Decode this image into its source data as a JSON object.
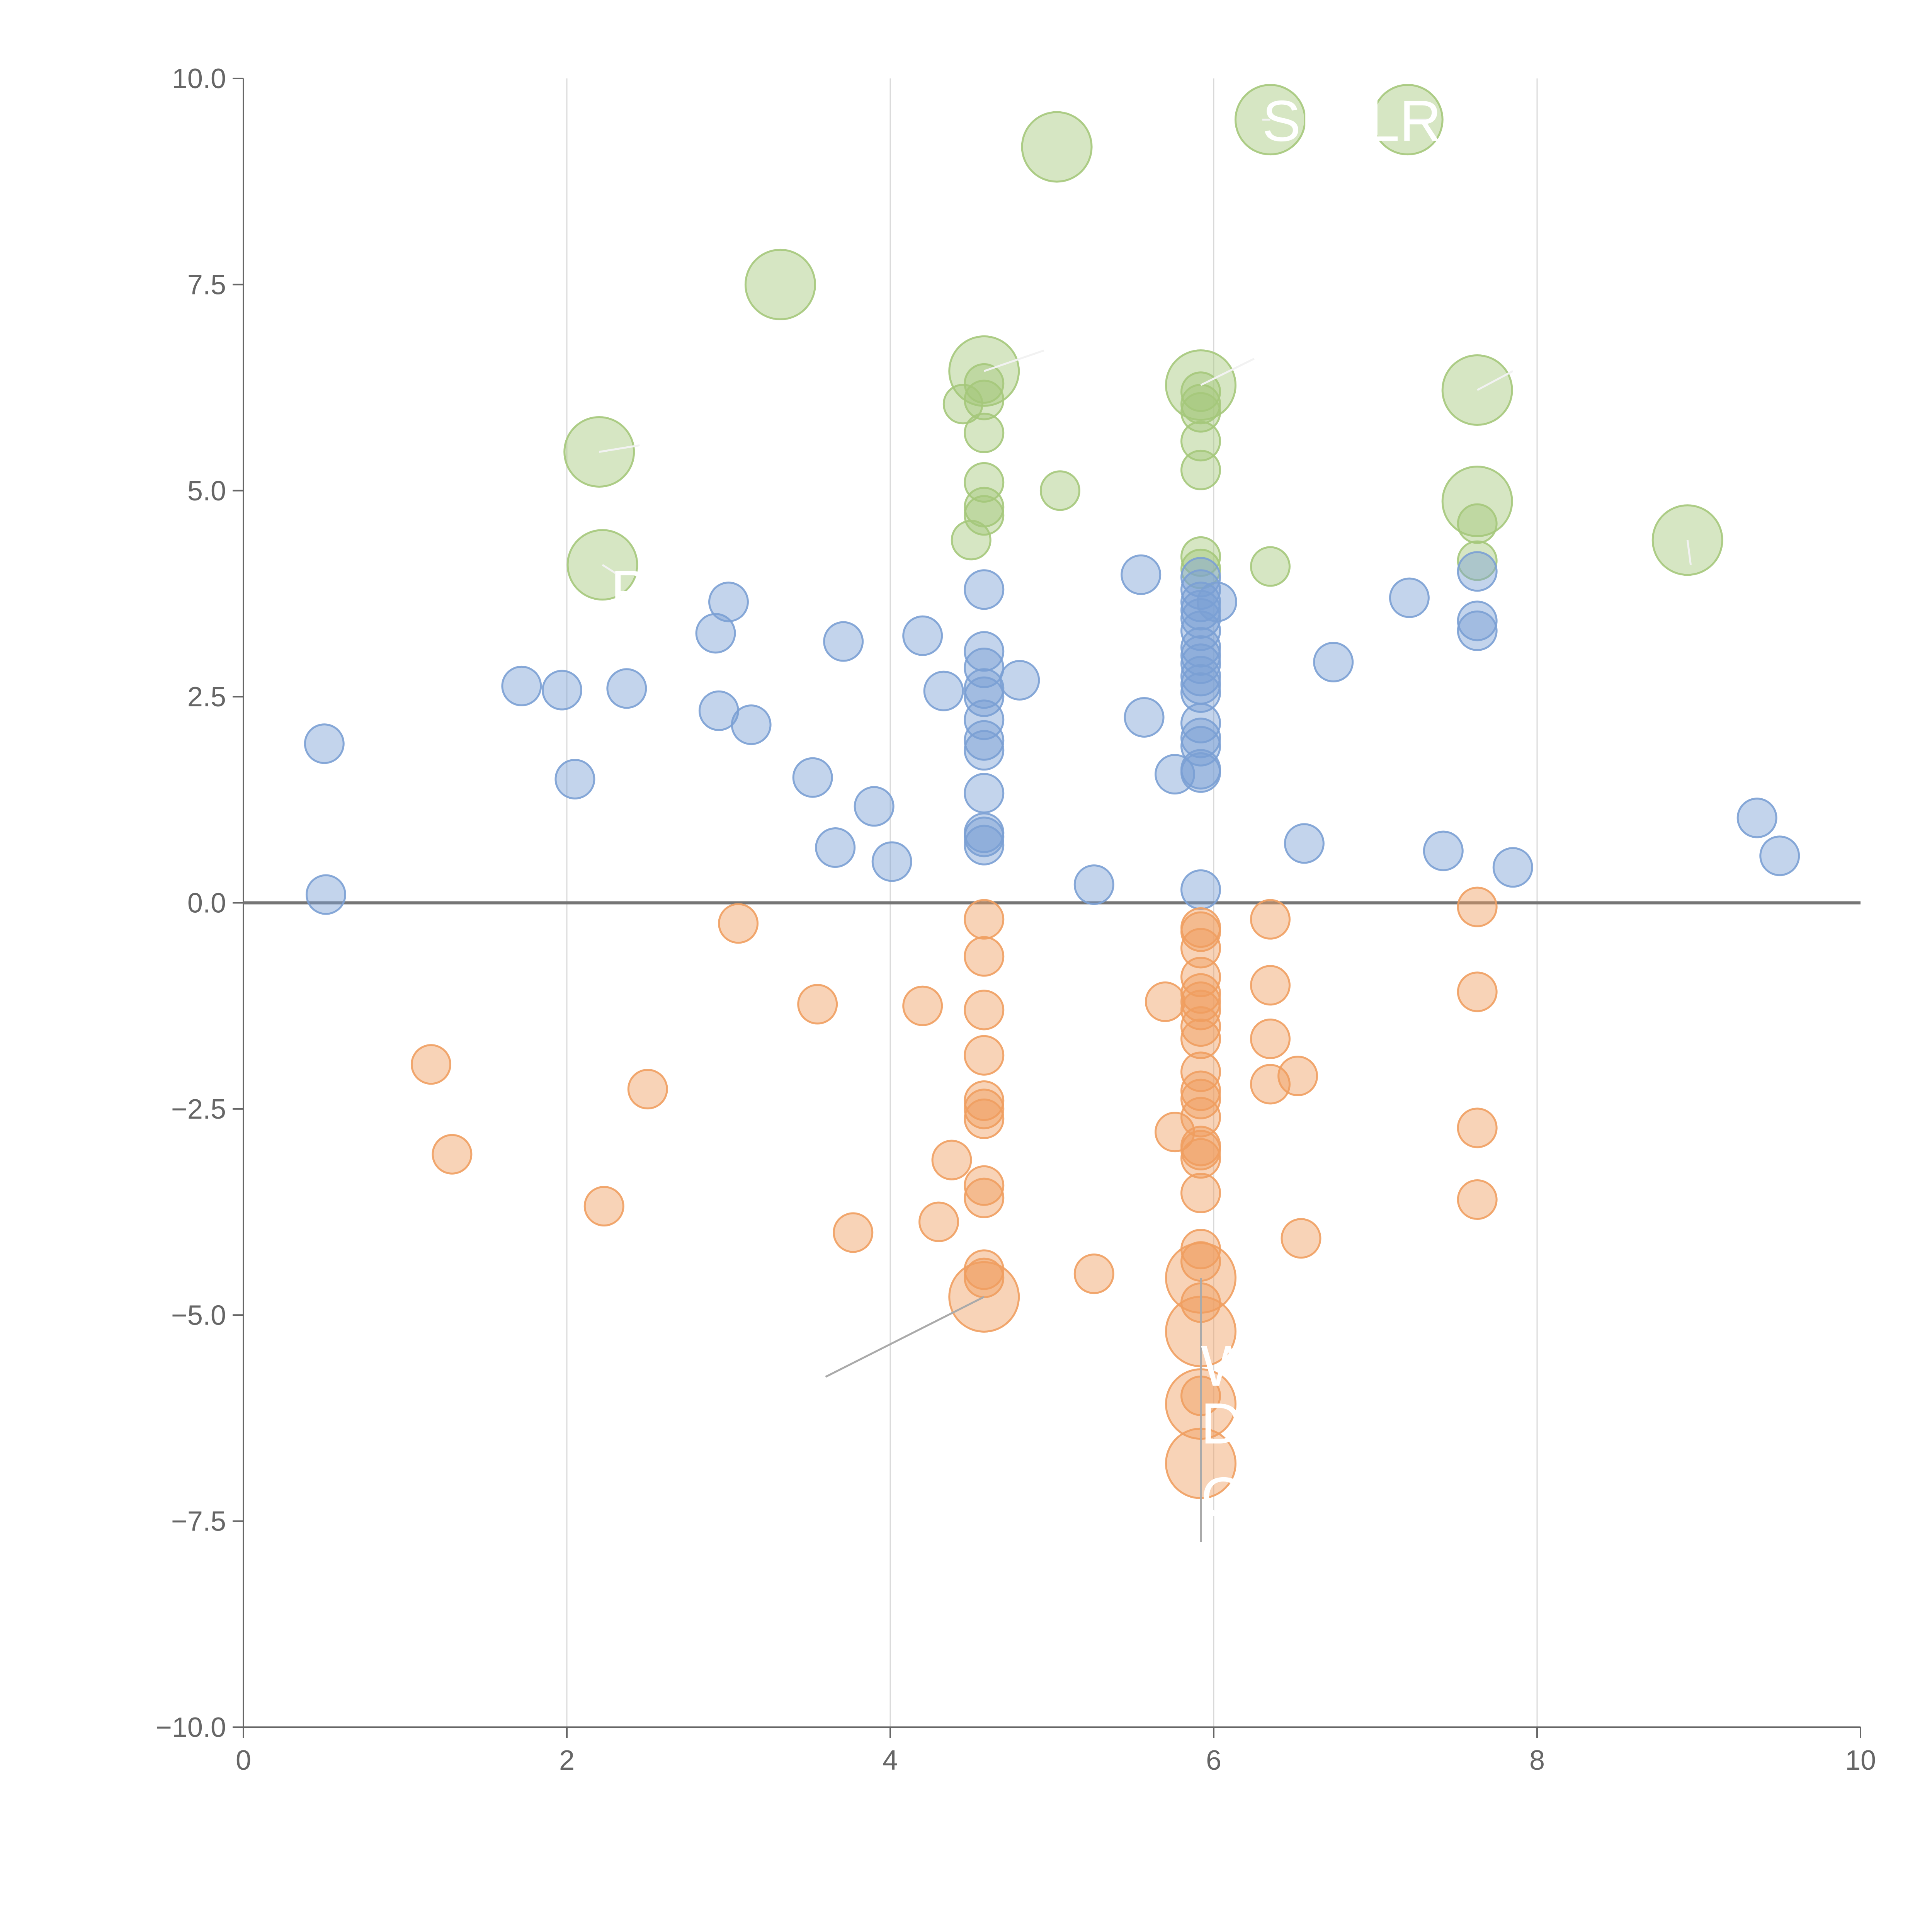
{
  "chart_data": {
    "type": "scatter",
    "title": "",
    "xlabel": "",
    "ylabel": "",
    "xlim": [
      0,
      10
    ],
    "ylim": [
      -10,
      10
    ],
    "x_ticks": [
      0,
      2,
      4,
      6,
      8,
      10
    ],
    "x_tick_labels": [
      "0",
      "2",
      "4",
      "6",
      "8",
      "10"
    ],
    "y_ticks": [
      10,
      7.5,
      5,
      2.5,
      0,
      -2.5,
      -5,
      -7.5,
      -10
    ],
    "y_tick_labels": [
      "10.0",
      "7.5",
      "5.0",
      "2.5",
      "0.0",
      "−2.5",
      "−5.0",
      "−7.5",
      "−10.0"
    ],
    "vertical_gridlines_at": [
      2,
      4,
      6,
      8
    ],
    "zero_line": 0,
    "colors": {
      "high": "#a5c87b",
      "mid": "#7ba0d4",
      "low": "#ef9e60",
      "axis": "#666666",
      "grid": "#d9d9d9",
      "zero_line": "#757575",
      "annotation_text": "#ffffff",
      "leader_light": "#f2f2f2",
      "leader_dark": "#aaaaaa"
    },
    "series": [
      {
        "name": "high",
        "color": "#a5c87b",
        "points": [
          {
            "x": 5.03,
            "y": 9.17,
            "size": 2
          },
          {
            "x": 6.35,
            "y": 9.5,
            "size": 2
          },
          {
            "x": 7.2,
            "y": 9.5,
            "size": 2
          },
          {
            "x": 3.32,
            "y": 7.5,
            "size": 2
          },
          {
            "x": 4.58,
            "y": 6.45,
            "size": 2
          },
          {
            "x": 4.58,
            "y": 6.3,
            "size": 1
          },
          {
            "x": 4.58,
            "y": 6.1,
            "size": 1
          },
          {
            "x": 4.45,
            "y": 6.05,
            "size": 1
          },
          {
            "x": 4.58,
            "y": 5.7,
            "size": 1
          },
          {
            "x": 4.58,
            "y": 5.1,
            "size": 1
          },
          {
            "x": 4.58,
            "y": 4.8,
            "size": 1
          },
          {
            "x": 4.58,
            "y": 4.7,
            "size": 1
          },
          {
            "x": 4.5,
            "y": 4.4,
            "size": 1
          },
          {
            "x": 5.92,
            "y": 6.28,
            "size": 2
          },
          {
            "x": 5.92,
            "y": 6.2,
            "size": 1
          },
          {
            "x": 5.92,
            "y": 6.05,
            "size": 1
          },
          {
            "x": 5.92,
            "y": 5.95,
            "size": 1
          },
          {
            "x": 5.92,
            "y": 5.6,
            "size": 1
          },
          {
            "x": 5.92,
            "y": 5.25,
            "size": 1
          },
          {
            "x": 5.92,
            "y": 4.2,
            "size": 1
          },
          {
            "x": 5.92,
            "y": 4.05,
            "size": 1
          },
          {
            "x": 6.35,
            "y": 4.08,
            "size": 1
          },
          {
            "x": 5.05,
            "y": 5.0,
            "size": 1
          },
          {
            "x": 7.63,
            "y": 6.22,
            "size": 2
          },
          {
            "x": 7.63,
            "y": 4.87,
            "size": 2
          },
          {
            "x": 7.63,
            "y": 4.6,
            "size": 1
          },
          {
            "x": 7.63,
            "y": 4.15,
            "size": 1
          },
          {
            "x": 8.93,
            "y": 4.4,
            "size": 2
          },
          {
            "x": 2.2,
            "y": 5.47,
            "size": 2
          },
          {
            "x": 2.22,
            "y": 4.1,
            "size": 2
          }
        ]
      },
      {
        "name": "mid",
        "color": "#7ba0d4",
        "points": [
          {
            "x": 0.5,
            "y": 1.93,
            "size": 1
          },
          {
            "x": 0.51,
            "y": 0.1,
            "size": 1
          },
          {
            "x": 1.72,
            "y": 2.63,
            "size": 1
          },
          {
            "x": 1.97,
            "y": 2.58,
            "size": 1
          },
          {
            "x": 2.05,
            "y": 1.5,
            "size": 1
          },
          {
            "x": 2.37,
            "y": 2.6,
            "size": 1
          },
          {
            "x": 2.92,
            "y": 3.27,
            "size": 1
          },
          {
            "x": 2.94,
            "y": 2.33,
            "size": 1
          },
          {
            "x": 3.0,
            "y": 3.65,
            "size": 1
          },
          {
            "x": 3.14,
            "y": 2.16,
            "size": 1
          },
          {
            "x": 3.52,
            "y": 1.52,
            "size": 1
          },
          {
            "x": 3.66,
            "y": 0.67,
            "size": 1
          },
          {
            "x": 3.71,
            "y": 3.17,
            "size": 1
          },
          {
            "x": 3.9,
            "y": 1.17,
            "size": 1
          },
          {
            "x": 4.01,
            "y": 0.5,
            "size": 1
          },
          {
            "x": 4.2,
            "y": 3.24,
            "size": 1
          },
          {
            "x": 4.33,
            "y": 2.57,
            "size": 1
          },
          {
            "x": 4.58,
            "y": 3.8,
            "size": 1
          },
          {
            "x": 4.58,
            "y": 3.05,
            "size": 1
          },
          {
            "x": 4.58,
            "y": 2.85,
            "size": 1
          },
          {
            "x": 4.58,
            "y": 2.6,
            "size": 1
          },
          {
            "x": 4.58,
            "y": 2.5,
            "size": 1
          },
          {
            "x": 4.58,
            "y": 2.22,
            "size": 1
          },
          {
            "x": 4.58,
            "y": 1.97,
            "size": 1
          },
          {
            "x": 4.58,
            "y": 1.85,
            "size": 1
          },
          {
            "x": 4.58,
            "y": 1.33,
            "size": 1
          },
          {
            "x": 4.58,
            "y": 0.85,
            "size": 1
          },
          {
            "x": 4.58,
            "y": 0.8,
            "size": 1
          },
          {
            "x": 4.58,
            "y": 0.7,
            "size": 1
          },
          {
            "x": 4.8,
            "y": 2.7,
            "size": 1
          },
          {
            "x": 5.26,
            "y": 0.22,
            "size": 1
          },
          {
            "x": 5.55,
            "y": 3.98,
            "size": 1
          },
          {
            "x": 5.57,
            "y": 2.25,
            "size": 1
          },
          {
            "x": 5.76,
            "y": 1.56,
            "size": 1
          },
          {
            "x": 5.92,
            "y": 3.95,
            "size": 1
          },
          {
            "x": 5.92,
            "y": 3.8,
            "size": 1
          },
          {
            "x": 5.92,
            "y": 3.65,
            "size": 1
          },
          {
            "x": 5.92,
            "y": 3.55,
            "size": 1
          },
          {
            "x": 5.92,
            "y": 3.45,
            "size": 1
          },
          {
            "x": 5.92,
            "y": 3.3,
            "size": 1
          },
          {
            "x": 5.92,
            "y": 3.1,
            "size": 1
          },
          {
            "x": 5.92,
            "y": 3.0,
            "size": 1
          },
          {
            "x": 5.92,
            "y": 2.9,
            "size": 1
          },
          {
            "x": 5.92,
            "y": 2.75,
            "size": 1
          },
          {
            "x": 5.92,
            "y": 2.65,
            "size": 1
          },
          {
            "x": 5.92,
            "y": 2.55,
            "size": 1
          },
          {
            "x": 5.92,
            "y": 2.18,
            "size": 1
          },
          {
            "x": 5.92,
            "y": 2.0,
            "size": 1
          },
          {
            "x": 5.92,
            "y": 1.9,
            "size": 1
          },
          {
            "x": 5.92,
            "y": 1.62,
            "size": 1
          },
          {
            "x": 5.92,
            "y": 1.58,
            "size": 1
          },
          {
            "x": 5.92,
            "y": 0.16,
            "size": 1
          },
          {
            "x": 6.02,
            "y": 3.65,
            "size": 1
          },
          {
            "x": 6.56,
            "y": 0.72,
            "size": 1
          },
          {
            "x": 6.74,
            "y": 2.92,
            "size": 1
          },
          {
            "x": 7.21,
            "y": 3.7,
            "size": 1
          },
          {
            "x": 7.42,
            "y": 0.63,
            "size": 1
          },
          {
            "x": 7.63,
            "y": 4.02,
            "size": 1
          },
          {
            "x": 7.63,
            "y": 3.42,
            "size": 1
          },
          {
            "x": 7.63,
            "y": 3.3,
            "size": 1
          },
          {
            "x": 7.85,
            "y": 0.43,
            "size": 1
          },
          {
            "x": 9.36,
            "y": 1.03,
            "size": 1
          },
          {
            "x": 9.5,
            "y": 0.57,
            "size": 1
          }
        ]
      },
      {
        "name": "low",
        "color": "#ef9e60",
        "points": [
          {
            "x": 3.06,
            "y": -0.25,
            "size": 1
          },
          {
            "x": 1.16,
            "y": -1.96,
            "size": 1
          },
          {
            "x": 1.29,
            "y": -3.05,
            "size": 1
          },
          {
            "x": 2.23,
            "y": -3.68,
            "size": 1
          },
          {
            "x": 2.5,
            "y": -2.26,
            "size": 1
          },
          {
            "x": 3.55,
            "y": -1.23,
            "size": 1
          },
          {
            "x": 3.77,
            "y": -4.0,
            "size": 1
          },
          {
            "x": 4.2,
            "y": -1.25,
            "size": 1
          },
          {
            "x": 4.3,
            "y": -3.87,
            "size": 1
          },
          {
            "x": 4.38,
            "y": -3.12,
            "size": 1
          },
          {
            "x": 4.58,
            "y": -0.2,
            "size": 1
          },
          {
            "x": 4.58,
            "y": -0.65,
            "size": 1
          },
          {
            "x": 4.58,
            "y": -1.3,
            "size": 1
          },
          {
            "x": 4.58,
            "y": -1.85,
            "size": 1
          },
          {
            "x": 4.58,
            "y": -2.4,
            "size": 1
          },
          {
            "x": 4.58,
            "y": -2.5,
            "size": 1
          },
          {
            "x": 4.58,
            "y": -2.62,
            "size": 1
          },
          {
            "x": 4.58,
            "y": -3.43,
            "size": 1
          },
          {
            "x": 4.58,
            "y": -3.58,
            "size": 1
          },
          {
            "x": 4.58,
            "y": -4.45,
            "size": 1
          },
          {
            "x": 4.58,
            "y": -4.55,
            "size": 1
          },
          {
            "x": 4.58,
            "y": -4.78,
            "size": 2
          },
          {
            "x": 5.26,
            "y": -4.5,
            "size": 1
          },
          {
            "x": 5.7,
            "y": -1.2,
            "size": 1
          },
          {
            "x": 5.76,
            "y": -2.78,
            "size": 1
          },
          {
            "x": 5.92,
            "y": -0.3,
            "size": 1
          },
          {
            "x": 5.92,
            "y": -0.35,
            "size": 1
          },
          {
            "x": 5.92,
            "y": -0.55,
            "size": 1
          },
          {
            "x": 5.92,
            "y": -0.9,
            "size": 1
          },
          {
            "x": 5.92,
            "y": -1.1,
            "size": 1
          },
          {
            "x": 5.92,
            "y": -1.2,
            "size": 1
          },
          {
            "x": 5.92,
            "y": -1.3,
            "size": 1
          },
          {
            "x": 5.92,
            "y": -1.5,
            "size": 1
          },
          {
            "x": 5.92,
            "y": -1.65,
            "size": 1
          },
          {
            "x": 5.92,
            "y": -2.05,
            "size": 1
          },
          {
            "x": 5.92,
            "y": -2.28,
            "size": 1
          },
          {
            "x": 5.92,
            "y": -2.38,
            "size": 1
          },
          {
            "x": 5.92,
            "y": -2.6,
            "size": 1
          },
          {
            "x": 5.92,
            "y": -2.95,
            "size": 1
          },
          {
            "x": 5.92,
            "y": -3.0,
            "size": 1
          },
          {
            "x": 5.92,
            "y": -3.1,
            "size": 1
          },
          {
            "x": 5.92,
            "y": -3.52,
            "size": 1
          },
          {
            "x": 5.92,
            "y": -4.2,
            "size": 1
          },
          {
            "x": 5.92,
            "y": -4.35,
            "size": 1
          },
          {
            "x": 5.92,
            "y": -4.55,
            "size": 2
          },
          {
            "x": 5.92,
            "y": -4.85,
            "size": 1
          },
          {
            "x": 5.92,
            "y": -5.2,
            "size": 2
          },
          {
            "x": 5.92,
            "y": -5.98,
            "size": 1
          },
          {
            "x": 5.92,
            "y": -6.08,
            "size": 2
          },
          {
            "x": 5.92,
            "y": -6.8,
            "size": 2
          },
          {
            "x": 6.35,
            "y": -0.2,
            "size": 1
          },
          {
            "x": 6.35,
            "y": -1.0,
            "size": 1
          },
          {
            "x": 6.35,
            "y": -1.65,
            "size": 1
          },
          {
            "x": 6.35,
            "y": -2.2,
            "size": 1
          },
          {
            "x": 6.52,
            "y": -2.1,
            "size": 1
          },
          {
            "x": 6.54,
            "y": -4.07,
            "size": 1
          },
          {
            "x": 7.63,
            "y": -0.05,
            "size": 1
          },
          {
            "x": 7.63,
            "y": -1.08,
            "size": 1
          },
          {
            "x": 7.63,
            "y": -2.73,
            "size": 1
          },
          {
            "x": 7.63,
            "y": -3.6,
            "size": 1
          }
        ]
      }
    ],
    "annotations": [
      {
        "text": "SU",
        "x": 6.3,
        "y": 9.5,
        "line_from": [
          6.35,
          9.5
        ],
        "line_to": [
          6.3,
          9.5
        ],
        "leader": "light"
      },
      {
        "text": "LR",
        "x": 6.95,
        "y": 9.5,
        "line_from": [
          7.2,
          9.5
        ],
        "line_to": [
          7.35,
          9.5
        ],
        "leader": "light"
      },
      {
        "text": "",
        "x": 4.95,
        "y": 6.7,
        "line_from": [
          4.58,
          6.45
        ],
        "line_to": [
          4.95,
          6.7
        ],
        "leader": "light"
      },
      {
        "text": "",
        "x": 6.25,
        "y": 6.6,
        "line_from": [
          5.92,
          6.28
        ],
        "line_to": [
          6.25,
          6.6
        ],
        "leader": "light"
      },
      {
        "text": "",
        "x": 7.85,
        "y": 6.45,
        "line_from": [
          7.63,
          6.22
        ],
        "line_to": [
          7.85,
          6.45
        ],
        "leader": "light"
      },
      {
        "text": "",
        "x": 2.45,
        "y": 5.55,
        "line_from": [
          2.2,
          5.47
        ],
        "line_to": [
          2.45,
          5.55
        ],
        "leader": "light"
      },
      {
        "text": "",
        "x": 8.95,
        "y": 4.1,
        "line_from": [
          8.93,
          4.4
        ],
        "line_to": [
          8.95,
          4.1
        ],
        "leader": "light"
      },
      {
        "text": "P",
        "x": 2.27,
        "y": 3.8,
        "line_from": [
          2.22,
          4.1
        ],
        "line_to": [
          2.3,
          4.0
        ],
        "leader": "light"
      },
      {
        "text": "",
        "x": 3.6,
        "y": -5.75,
        "line_from": [
          4.58,
          -4.78
        ],
        "line_to": [
          3.6,
          -5.75
        ],
        "leader": "dark"
      },
      {
        "text": "W",
        "x": 5.92,
        "y": -5.6,
        "line_from": [
          5.92,
          -4.55
        ],
        "line_to": [
          5.92,
          -7.75
        ],
        "leader": "dark"
      },
      {
        "text": "D",
        "x": 5.92,
        "y": -6.3,
        "line_from": [
          5.92,
          -6.08
        ],
        "line_to": [
          5.92,
          -6.08
        ],
        "leader": "dark"
      },
      {
        "text": "G",
        "x": 5.92,
        "y": -7.2,
        "line_from": [
          5.92,
          -6.8
        ],
        "line_to": [
          5.92,
          -6.8
        ],
        "leader": "dark"
      }
    ]
  }
}
